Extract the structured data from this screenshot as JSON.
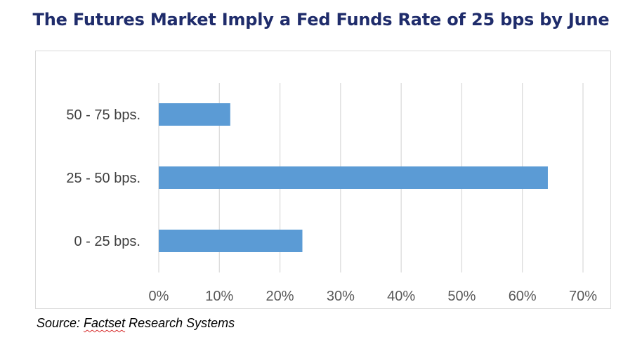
{
  "chart_data": {
    "type": "bar",
    "orientation": "horizontal",
    "title": "The Futures Market Imply a Fed Funds Rate of 25 bps by June",
    "categories": [
      "0 - 25 bps.",
      "25 - 50 bps.",
      "50 - 75 bps."
    ],
    "values": [
      23.7,
      64.2,
      11.8
    ],
    "xlim": [
      0,
      70
    ],
    "x_ticks": [
      "0%",
      "10%",
      "20%",
      "30%",
      "40%",
      "50%",
      "60%",
      "70%"
    ],
    "xlabel": "",
    "ylabel": "",
    "grid": "vertical",
    "legend": "none",
    "bar_color": "#5b9bd5",
    "grid_color": "#d9d9d9"
  },
  "source": {
    "prefix": "Source: ",
    "flagged_word": "Factset",
    "suffix": " Research Systems"
  },
  "colors": {
    "title": "#1f2c6b",
    "bar": "#5b9bd5",
    "spellcheck_underline": "#d62a2a"
  }
}
